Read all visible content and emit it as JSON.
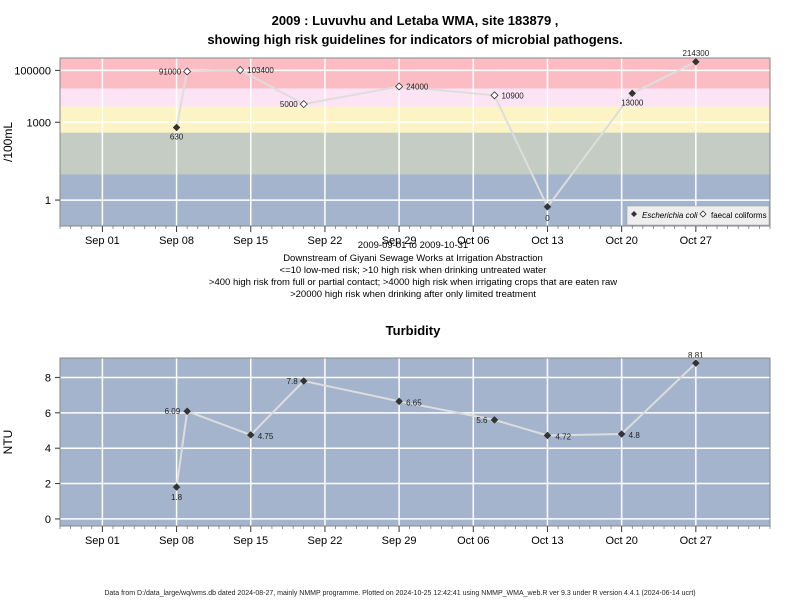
{
  "chart_data": [
    {
      "type": "line",
      "title": "2009 : Luvuvhu and Letaba WMA, site 183879 ,",
      "subtitle": "showing high risk guidelines for indicators of microbial pathogens.",
      "ylabel": "/100mL",
      "yscale": "log",
      "y_ticks": [
        1,
        1000,
        100000
      ],
      "y_tick_labels": [
        "1",
        "1000",
        "100000"
      ],
      "xlim": [
        "2009-08-28",
        "2009-11-03"
      ],
      "x_ticks": [
        "2009-09-01",
        "2009-09-08",
        "2009-09-15",
        "2009-09-22",
        "2009-09-29",
        "2009-10-06",
        "2009-10-13",
        "2009-10-20",
        "2009-10-27"
      ],
      "x_tick_labels": [
        "Sep 01",
        "Sep 08",
        "Sep 15",
        "Sep 22",
        "Sep 29",
        "Oct 06",
        "Oct 13",
        "Oct 20",
        "Oct 27"
      ],
      "risk_bands": [
        {
          "from": 0.1,
          "to": 10,
          "color": "#a3b4cc"
        },
        {
          "from": 10,
          "to": 400,
          "color": "#c4ccc4"
        },
        {
          "from": 400,
          "to": 4000,
          "color": "#fcf4c4"
        },
        {
          "from": 4000,
          "to": 20000,
          "color": "#fce4f4"
        },
        {
          "from": 20000,
          "to": 300000,
          "color": "#fcbcc4"
        }
      ],
      "series": [
        {
          "name": "Escherichia coli",
          "marker": "filled-diamond",
          "points": [
            {
              "x": "2009-09-08",
              "y": 630,
              "label": "630"
            },
            {
              "x": "2009-10-13",
              "y": 0.55,
              "label": "0"
            },
            {
              "x": "2009-10-21",
              "y": 13000,
              "label": "13000"
            },
            {
              "x": "2009-10-27",
              "y": 214300,
              "label": "214300"
            }
          ]
        },
        {
          "name": "faecal coliforms",
          "marker": "open-diamond",
          "points": [
            {
              "x": "2009-09-09",
              "y": 91000,
              "label": "91000"
            },
            {
              "x": "2009-09-14",
              "y": 103400,
              "label": "103400"
            },
            {
              "x": "2009-09-20",
              "y": 5000,
              "label": "5000"
            },
            {
              "x": "2009-09-29",
              "y": 24000,
              "label": "24000"
            },
            {
              "x": "2009-10-08",
              "y": 10900,
              "label": "10900"
            }
          ]
        }
      ],
      "line_order": [
        "2009-09-08",
        "2009-09-09",
        "2009-09-14",
        "2009-09-20",
        "2009-09-29",
        "2009-10-08",
        "2009-10-13",
        "2009-10-21",
        "2009-10-27"
      ],
      "legend_position": "bottom-right",
      "notes": [
        "2009-09-01 to 2009-10-31",
        "Downstream of Giyani Sewage Works at Irrigation Abstraction",
        "<=10 low-med risk; >10 high risk when drinking untreated water",
        ">400 high risk from full or partial contact; >4000 high risk when irrigating crops that are eaten raw",
        ">20000 high risk when drinking after only limited treatment"
      ]
    },
    {
      "type": "line",
      "title": "Turbidity",
      "ylabel": "NTU",
      "ylim": [
        -0.4,
        9.1
      ],
      "y_ticks": [
        0,
        2,
        4,
        6,
        8
      ],
      "y_tick_labels": [
        "0",
        "2",
        "4",
        "6",
        "8"
      ],
      "xlim": [
        "2009-08-28",
        "2009-11-03"
      ],
      "x_ticks": [
        "2009-09-01",
        "2009-09-08",
        "2009-09-15",
        "2009-09-22",
        "2009-09-29",
        "2009-10-06",
        "2009-10-13",
        "2009-10-20",
        "2009-10-27"
      ],
      "x_tick_labels": [
        "Sep 01",
        "Sep 08",
        "Sep 15",
        "Sep 22",
        "Sep 29",
        "Oct 06",
        "Oct 13",
        "Oct 20",
        "Oct 27"
      ],
      "series": [
        {
          "name": "",
          "marker": "filled-diamond",
          "points": [
            {
              "x": "2009-09-08",
              "y": 1.8,
              "label": "1.8"
            },
            {
              "x": "2009-09-09",
              "y": 6.09,
              "label": "6.09"
            },
            {
              "x": "2009-09-15",
              "y": 4.75,
              "label": "4.75"
            },
            {
              "x": "2009-09-20",
              "y": 7.8,
              "label": "7.8"
            },
            {
              "x": "2009-09-29",
              "y": 6.65,
              "label": "6.65"
            },
            {
              "x": "2009-10-08",
              "y": 5.6,
              "label": "5.6"
            },
            {
              "x": "2009-10-13",
              "y": 4.72,
              "label": "4.72"
            },
            {
              "x": "2009-10-20",
              "y": 4.8,
              "label": "4.8"
            },
            {
              "x": "2009-10-27",
              "y": 8.81,
              "label": "8.81"
            }
          ]
        }
      ]
    }
  ],
  "footer": "Data from D:/data_large/wq/wms.db dated 2024-08-27, mainly NMMP programme. Plotted on 2024-10-25 12:42:41 using NMMP_WMA_web.R ver 9.3 under R version 4.4.1 (2024-06-14 ucrt)"
}
